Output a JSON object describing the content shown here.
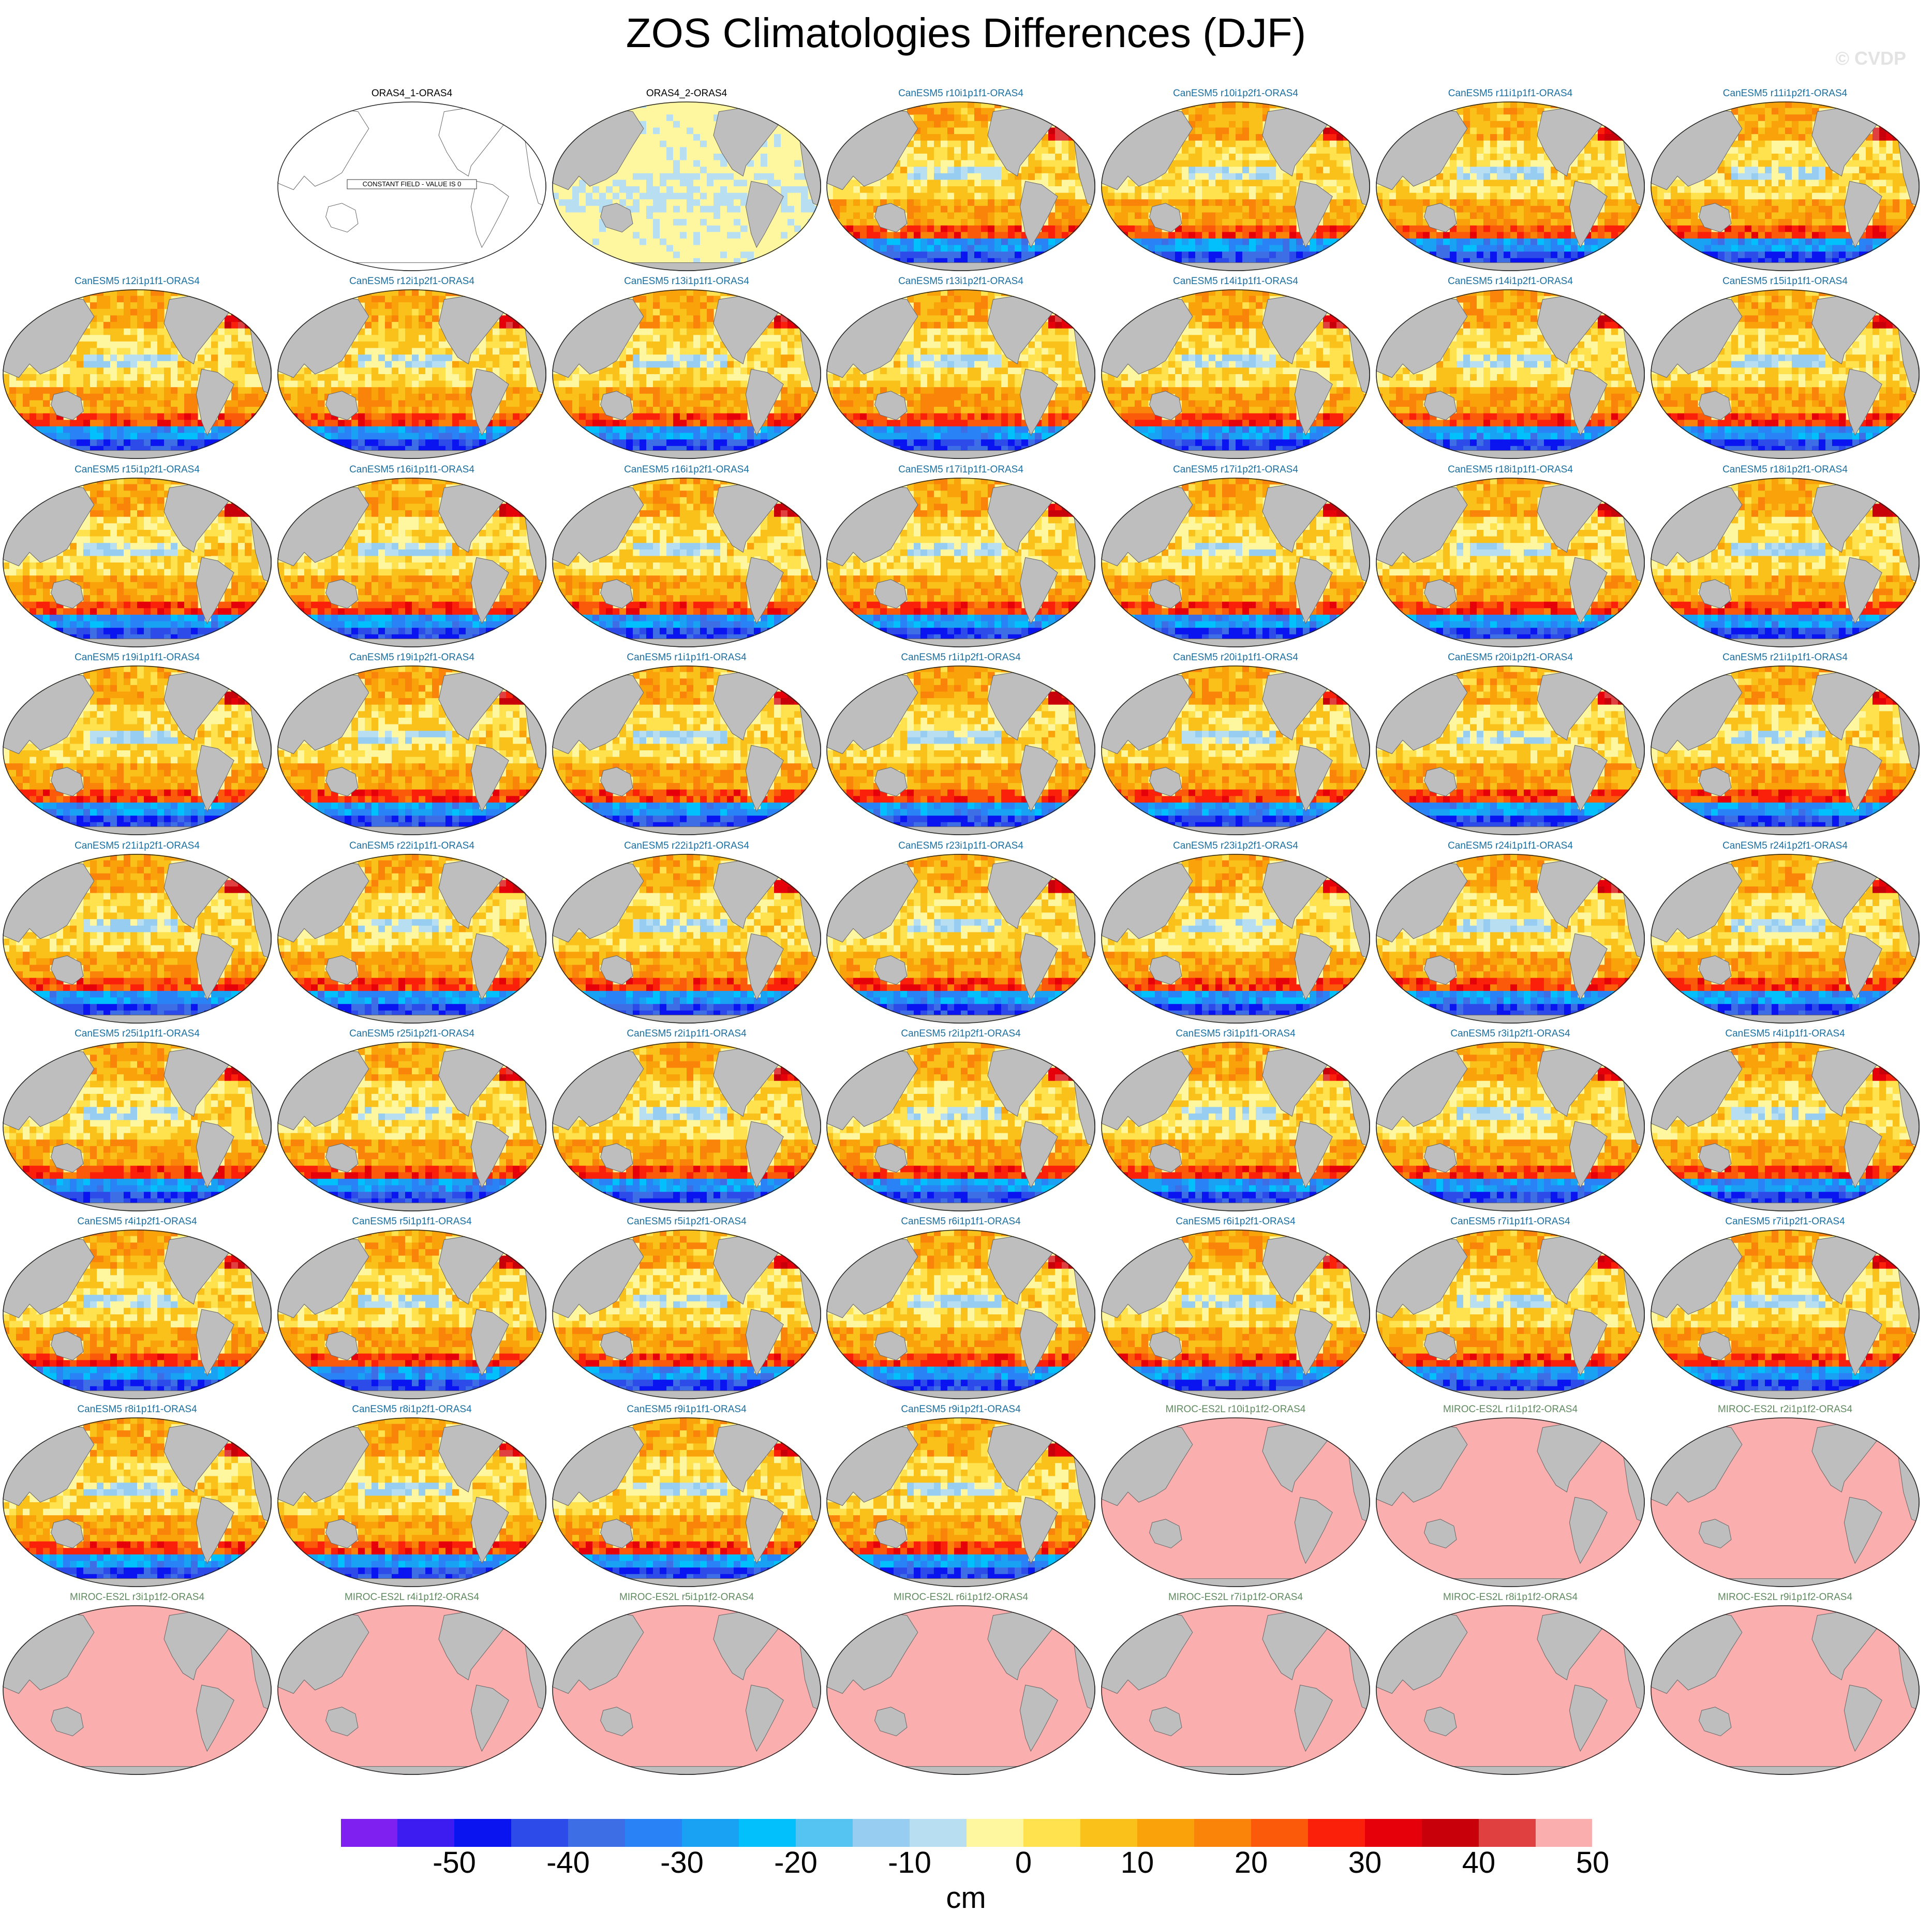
{
  "title": "ZOS Climatologies Differences (DJF)",
  "watermark": "© CVDP",
  "chart_data": {
    "type": "heatmap",
    "projection": "Robinson, Pacific-centered, global ocean",
    "variable_units": "cm",
    "colorbar": {
      "ticks": [
        "-50",
        "-40",
        "-30",
        "-20",
        "-10",
        "0",
        "10",
        "20",
        "30",
        "40",
        "50"
      ],
      "unit_label": "cm",
      "colors": [
        "#8020f0",
        "#3c1cf0",
        "#0a14f0",
        "#2d4be8",
        "#3e6ee6",
        "#2a82f7",
        "#19a2f3",
        "#02c0fb",
        "#56c4f3",
        "#96cdf0",
        "#b8def2",
        "#fff7a0",
        "#ffe24e",
        "#fbc11b",
        "#faa20a",
        "#fa830a",
        "#fa5a0a",
        "#fa200a",
        "#e6000a",
        "#c8000a",
        "#e04040",
        "#faaeae"
      ]
    },
    "land_color": "#bebebe",
    "panels": [
      {
        "label": "",
        "kind": "empty"
      },
      {
        "label": "ORAS4_1-ORAS4",
        "kind": "constant",
        "note": "CONSTANT FIELD - VALUE IS 0"
      },
      {
        "label": "ORAS4_2-ORAS4",
        "kind": "near_zero"
      },
      {
        "label": "CanESM5 r10i1p1f1-ORAS4",
        "kind": "canesm"
      },
      {
        "label": "CanESM5 r10i1p2f1-ORAS4",
        "kind": "canesm"
      },
      {
        "label": "CanESM5 r11i1p1f1-ORAS4",
        "kind": "canesm"
      },
      {
        "label": "CanESM5 r11i1p2f1-ORAS4",
        "kind": "canesm"
      },
      {
        "label": "CanESM5 r12i1p1f1-ORAS4",
        "kind": "canesm"
      },
      {
        "label": "CanESM5 r12i1p2f1-ORAS4",
        "kind": "canesm"
      },
      {
        "label": "CanESM5 r13i1p1f1-ORAS4",
        "kind": "canesm"
      },
      {
        "label": "CanESM5 r13i1p2f1-ORAS4",
        "kind": "canesm"
      },
      {
        "label": "CanESM5 r14i1p1f1-ORAS4",
        "kind": "canesm"
      },
      {
        "label": "CanESM5 r14i1p2f1-ORAS4",
        "kind": "canesm"
      },
      {
        "label": "CanESM5 r15i1p1f1-ORAS4",
        "kind": "canesm"
      },
      {
        "label": "CanESM5 r15i1p2f1-ORAS4",
        "kind": "canesm"
      },
      {
        "label": "CanESM5 r16i1p1f1-ORAS4",
        "kind": "canesm"
      },
      {
        "label": "CanESM5 r16i1p2f1-ORAS4",
        "kind": "canesm"
      },
      {
        "label": "CanESM5 r17i1p1f1-ORAS4",
        "kind": "canesm"
      },
      {
        "label": "CanESM5 r17i1p2f1-ORAS4",
        "kind": "canesm"
      },
      {
        "label": "CanESM5 r18i1p1f1-ORAS4",
        "kind": "canesm"
      },
      {
        "label": "CanESM5 r18i1p2f1-ORAS4",
        "kind": "canesm"
      },
      {
        "label": "CanESM5 r19i1p1f1-ORAS4",
        "kind": "canesm"
      },
      {
        "label": "CanESM5 r19i1p2f1-ORAS4",
        "kind": "canesm"
      },
      {
        "label": "CanESM5 r1i1p1f1-ORAS4",
        "kind": "canesm"
      },
      {
        "label": "CanESM5 r1i1p2f1-ORAS4",
        "kind": "canesm"
      },
      {
        "label": "CanESM5 r20i1p1f1-ORAS4",
        "kind": "canesm"
      },
      {
        "label": "CanESM5 r20i1p2f1-ORAS4",
        "kind": "canesm"
      },
      {
        "label": "CanESM5 r21i1p1f1-ORAS4",
        "kind": "canesm"
      },
      {
        "label": "CanESM5 r21i1p2f1-ORAS4",
        "kind": "canesm"
      },
      {
        "label": "CanESM5 r22i1p1f1-ORAS4",
        "kind": "canesm"
      },
      {
        "label": "CanESM5 r22i1p2f1-ORAS4",
        "kind": "canesm"
      },
      {
        "label": "CanESM5 r23i1p1f1-ORAS4",
        "kind": "canesm"
      },
      {
        "label": "CanESM5 r23i1p2f1-ORAS4",
        "kind": "canesm"
      },
      {
        "label": "CanESM5 r24i1p1f1-ORAS4",
        "kind": "canesm"
      },
      {
        "label": "CanESM5 r24i1p2f1-ORAS4",
        "kind": "canesm"
      },
      {
        "label": "CanESM5 r25i1p1f1-ORAS4",
        "kind": "canesm"
      },
      {
        "label": "CanESM5 r25i1p2f1-ORAS4",
        "kind": "canesm"
      },
      {
        "label": "CanESM5 r2i1p1f1-ORAS4",
        "kind": "canesm"
      },
      {
        "label": "CanESM5 r2i1p2f1-ORAS4",
        "kind": "canesm"
      },
      {
        "label": "CanESM5 r3i1p1f1-ORAS4",
        "kind": "canesm"
      },
      {
        "label": "CanESM5 r3i1p2f1-ORAS4",
        "kind": "canesm"
      },
      {
        "label": "CanESM5 r4i1p1f1-ORAS4",
        "kind": "canesm"
      },
      {
        "label": "CanESM5 r4i1p2f1-ORAS4",
        "kind": "canesm"
      },
      {
        "label": "CanESM5 r5i1p1f1-ORAS4",
        "kind": "canesm"
      },
      {
        "label": "CanESM5 r5i1p2f1-ORAS4",
        "kind": "canesm"
      },
      {
        "label": "CanESM5 r6i1p1f1-ORAS4",
        "kind": "canesm"
      },
      {
        "label": "CanESM5 r6i1p2f1-ORAS4",
        "kind": "canesm"
      },
      {
        "label": "CanESM5 r7i1p1f1-ORAS4",
        "kind": "canesm"
      },
      {
        "label": "CanESM5 r7i1p2f1-ORAS4",
        "kind": "canesm"
      },
      {
        "label": "CanESM5 r8i1p1f1-ORAS4",
        "kind": "canesm"
      },
      {
        "label": "CanESM5 r8i1p2f1-ORAS4",
        "kind": "canesm"
      },
      {
        "label": "CanESM5 r9i1p1f1-ORAS4",
        "kind": "canesm"
      },
      {
        "label": "CanESM5 r9i1p2f1-ORAS4",
        "kind": "canesm"
      },
      {
        "label": "MIROC-ES2L r10i1p1f2-ORAS4",
        "kind": "miroc"
      },
      {
        "label": "MIROC-ES2L r1i1p1f2-ORAS4",
        "kind": "miroc"
      },
      {
        "label": "MIROC-ES2L r2i1p1f2-ORAS4",
        "kind": "miroc"
      },
      {
        "label": "MIROC-ES2L r3i1p1f2-ORAS4",
        "kind": "miroc"
      },
      {
        "label": "MIROC-ES2L r4i1p1f2-ORAS4",
        "kind": "miroc"
      },
      {
        "label": "MIROC-ES2L r5i1p1f2-ORAS4",
        "kind": "miroc"
      },
      {
        "label": "MIROC-ES2L r6i1p1f2-ORAS4",
        "kind": "miroc"
      },
      {
        "label": "MIROC-ES2L r7i1p1f2-ORAS4",
        "kind": "miroc"
      },
      {
        "label": "MIROC-ES2L r8i1p1f2-ORAS4",
        "kind": "miroc"
      },
      {
        "label": "MIROC-ES2L r9i1p1f2-ORAS4",
        "kind": "miroc"
      }
    ],
    "label_colors": {
      "observation": "#000000",
      "canesm": "#1a6fa0",
      "miroc": "#5f8a5f"
    }
  }
}
